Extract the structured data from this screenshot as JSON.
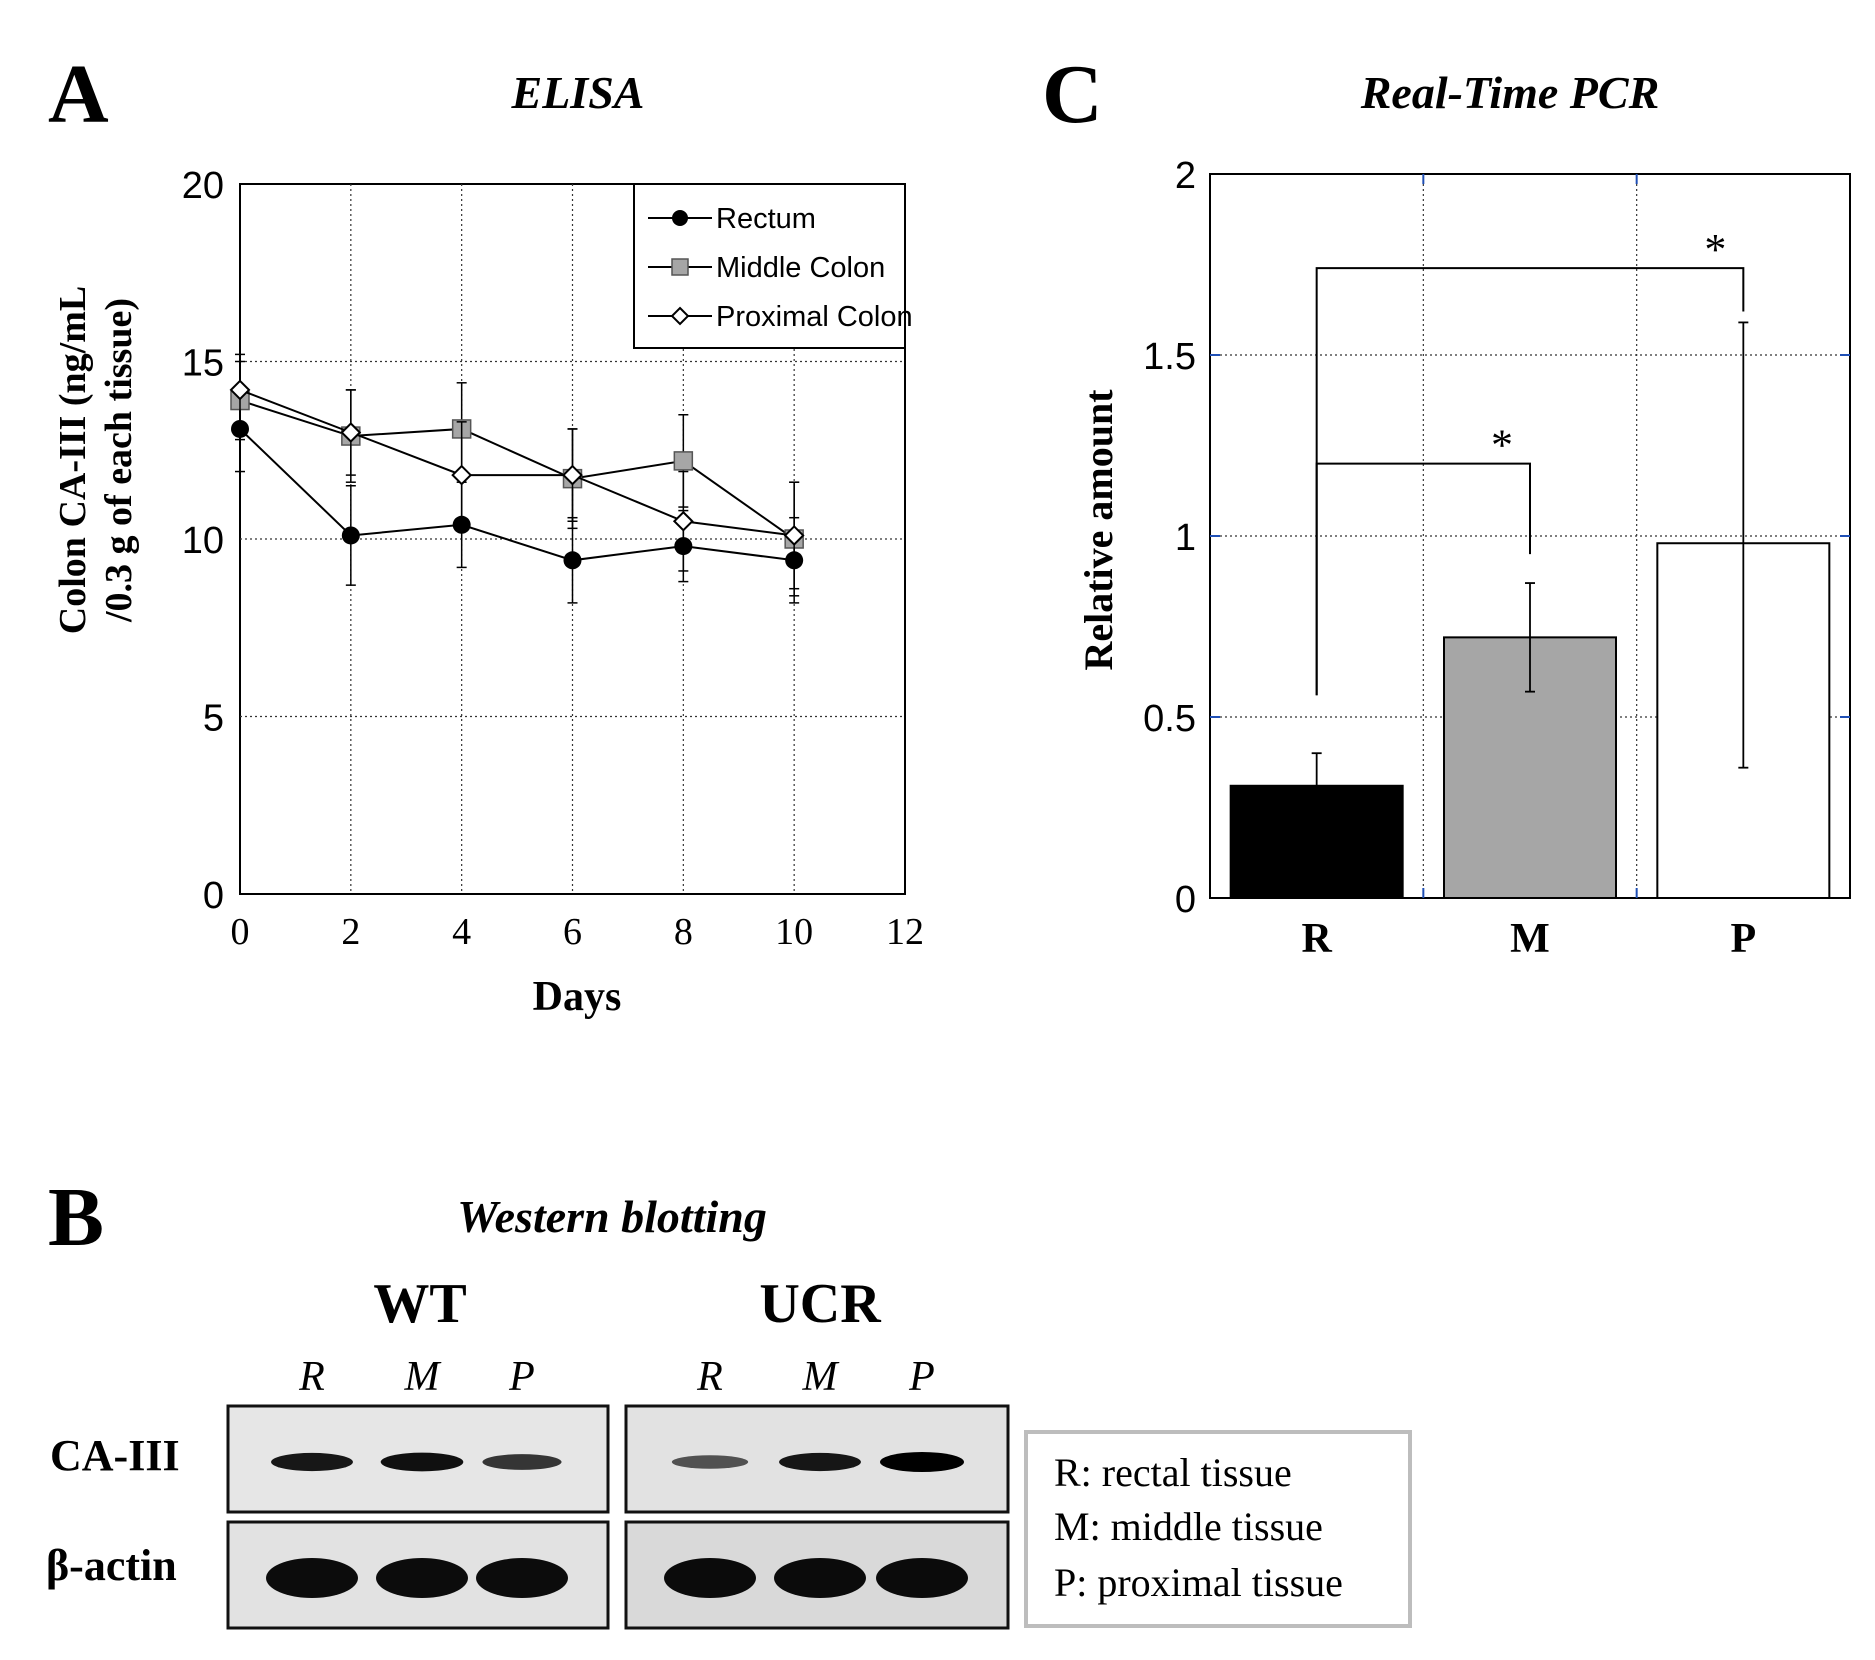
{
  "panel_labels": {
    "a": "A",
    "b": "B",
    "c": "C"
  },
  "chart_data": [
    {
      "type": "line",
      "panel": "A",
      "title": "ELISA",
      "xlabel": "Days",
      "ylabel_line1": "Colon CA-III (ng/mL",
      "ylabel_line2": "/0.3 g of each tissue)",
      "xlim": [
        0,
        12
      ],
      "ylim": [
        0,
        20
      ],
      "xticks": [
        0,
        2,
        4,
        6,
        8,
        10,
        12
      ],
      "yticks": [
        0,
        5,
        10,
        15,
        20
      ],
      "grid": true,
      "legend_position": "top-right",
      "series": [
        {
          "name": "Rectum",
          "marker": "circle",
          "x": [
            0,
            2,
            4,
            6,
            8,
            10
          ],
          "y": [
            13.1,
            10.1,
            10.4,
            9.4,
            9.8,
            9.4
          ],
          "err": [
            1.2,
            1.4,
            1.2,
            1.2,
            1.0,
            1.2
          ]
        },
        {
          "name": "Middle Colon",
          "marker": "square",
          "x": [
            0,
            2,
            4,
            6,
            8,
            10
          ],
          "y": [
            13.9,
            12.9,
            13.1,
            11.7,
            12.2,
            10.0
          ],
          "err": [
            1.1,
            1.3,
            1.3,
            1.4,
            1.3,
            1.6
          ]
        },
        {
          "name": "Proximal Colon",
          "marker": "diamond",
          "x": [
            0,
            2,
            4,
            6,
            8,
            10
          ],
          "y": [
            14.2,
            13.0,
            11.8,
            11.8,
            10.5,
            10.1
          ],
          "err": [
            1.0,
            1.2,
            1.5,
            1.3,
            1.4,
            1.5
          ]
        }
      ]
    },
    {
      "type": "bar",
      "panel": "C",
      "title": "Real-Time PCR",
      "xlabel": "",
      "ylabel": "Relative amount",
      "categories": [
        "R",
        "M",
        "P"
      ],
      "values": [
        0.31,
        0.72,
        0.98
      ],
      "err_low": [
        0.3,
        0.57,
        0.36
      ],
      "err_high": [
        0.4,
        0.87,
        1.59
      ],
      "fills": [
        "#000000",
        "#a6a6a6",
        "#ffffff"
      ],
      "ylim": [
        0,
        2
      ],
      "yticks": [
        0,
        0.5,
        1,
        1.5,
        2
      ],
      "ytick_labels": [
        "0",
        "0.5",
        "1",
        "1.5",
        "2"
      ],
      "grid": true,
      "significance": [
        {
          "from": "R",
          "to": "M",
          "label": "*"
        },
        {
          "from": "R",
          "to": "P",
          "label": "*"
        }
      ]
    }
  ],
  "western": {
    "title": "Western blotting",
    "groups": [
      {
        "name": "WT",
        "lanes": [
          "R",
          "M",
          "P"
        ],
        "ca3_band_intensity": [
          0.85,
          0.9,
          0.65
        ],
        "actin_band_intensity": [
          1.0,
          1.0,
          1.0
        ]
      },
      {
        "name": "UCR",
        "lanes": [
          "R",
          "M",
          "P"
        ],
        "ca3_band_intensity": [
          0.45,
          0.85,
          1.0
        ],
        "actin_band_intensity": [
          1.0,
          1.0,
          1.0
        ]
      }
    ],
    "row_labels": {
      "ca3": "CA-III",
      "actin": "β-actin"
    },
    "key": [
      "R: rectal tissue",
      "M: middle tissue",
      "P: proximal tissue"
    ]
  },
  "colors": {
    "ink": "#000000",
    "grid": "#333333",
    "blue_tick": "#1f4fb5",
    "middle_marker": "#a6a6a6",
    "blot_bg": "#e6e6e6",
    "key_border": "#bdbdbd"
  }
}
